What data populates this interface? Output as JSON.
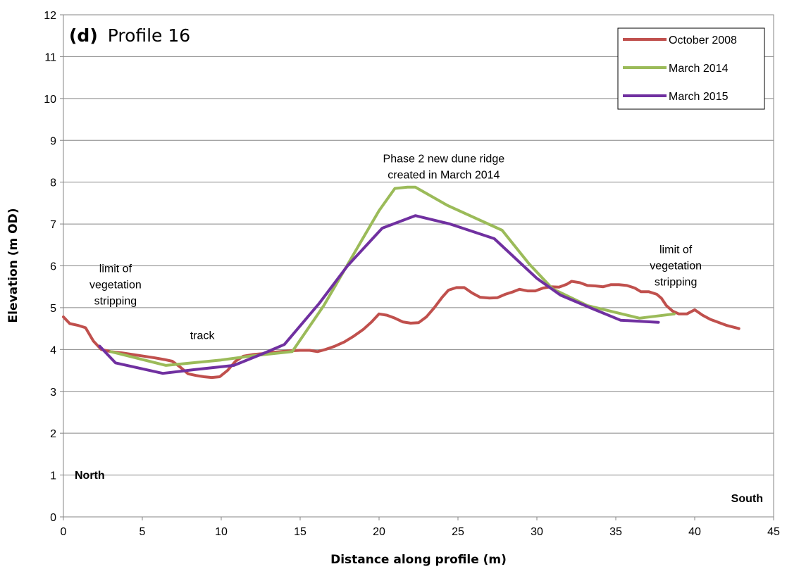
{
  "chart_data": {
    "type": "line",
    "title_letter": "(d)",
    "title": "Profile 16",
    "xlabel": "Distance along profile (m)",
    "ylabel": "Elevation (m OD)",
    "xlim": [
      0,
      45
    ],
    "ylim": [
      0,
      12
    ],
    "xticks": [
      "0",
      "5",
      "10",
      "15",
      "20",
      "25",
      "30",
      "35",
      "40",
      "45"
    ],
    "yticks": [
      "0",
      "1",
      "2",
      "3",
      "4",
      "5",
      "6",
      "7",
      "8",
      "9",
      "10",
      "11",
      "12"
    ],
    "grid": "horizontal",
    "legend_position": "top-right",
    "series": [
      {
        "name": "October 2008",
        "color": "#c0504d",
        "points": [
          [
            0,
            4.78
          ],
          [
            0.4,
            4.62
          ],
          [
            0.9,
            4.58
          ],
          [
            1.4,
            4.52
          ],
          [
            1.9,
            4.2
          ],
          [
            2.4,
            4.0
          ],
          [
            3,
            3.95
          ],
          [
            3.7,
            3.92
          ],
          [
            4.4,
            3.88
          ],
          [
            5.1,
            3.84
          ],
          [
            5.8,
            3.8
          ],
          [
            6.4,
            3.76
          ],
          [
            6.9,
            3.72
          ],
          [
            7.4,
            3.58
          ],
          [
            7.9,
            3.42
          ],
          [
            8.4,
            3.38
          ],
          [
            8.9,
            3.35
          ],
          [
            9.4,
            3.33
          ],
          [
            9.9,
            3.35
          ],
          [
            10.4,
            3.5
          ],
          [
            10.9,
            3.72
          ],
          [
            11.4,
            3.84
          ],
          [
            12,
            3.88
          ],
          [
            12.6,
            3.9
          ],
          [
            13.2,
            3.93
          ],
          [
            13.8,
            3.95
          ],
          [
            14.4,
            3.97
          ],
          [
            15,
            3.98
          ],
          [
            15.6,
            3.98
          ],
          [
            16.1,
            3.95
          ],
          [
            16.6,
            4.0
          ],
          [
            17.2,
            4.08
          ],
          [
            17.8,
            4.18
          ],
          [
            18.4,
            4.32
          ],
          [
            19,
            4.48
          ],
          [
            19.5,
            4.65
          ],
          [
            20,
            4.85
          ],
          [
            20.5,
            4.82
          ],
          [
            21,
            4.75
          ],
          [
            21.5,
            4.66
          ],
          [
            22,
            4.63
          ],
          [
            22.5,
            4.64
          ],
          [
            23,
            4.78
          ],
          [
            23.5,
            5.0
          ],
          [
            24,
            5.25
          ],
          [
            24.4,
            5.42
          ],
          [
            24.9,
            5.48
          ],
          [
            25.4,
            5.48
          ],
          [
            25.9,
            5.35
          ],
          [
            26.4,
            5.25
          ],
          [
            27,
            5.23
          ],
          [
            27.5,
            5.24
          ],
          [
            28,
            5.32
          ],
          [
            28.5,
            5.38
          ],
          [
            28.9,
            5.44
          ],
          [
            29.4,
            5.4
          ],
          [
            29.9,
            5.4
          ],
          [
            30.4,
            5.47
          ],
          [
            30.9,
            5.5
          ],
          [
            31.4,
            5.49
          ],
          [
            31.9,
            5.56
          ],
          [
            32.2,
            5.63
          ],
          [
            32.7,
            5.6
          ],
          [
            33.2,
            5.53
          ],
          [
            33.7,
            5.52
          ],
          [
            34.2,
            5.5
          ],
          [
            34.7,
            5.55
          ],
          [
            35.2,
            5.55
          ],
          [
            35.7,
            5.53
          ],
          [
            36.2,
            5.47
          ],
          [
            36.6,
            5.38
          ],
          [
            37.1,
            5.38
          ],
          [
            37.6,
            5.32
          ],
          [
            37.9,
            5.22
          ],
          [
            38.2,
            5.05
          ],
          [
            38.6,
            4.92
          ],
          [
            39,
            4.85
          ],
          [
            39.5,
            4.85
          ],
          [
            40,
            4.95
          ],
          [
            40.5,
            4.82
          ],
          [
            41,
            4.72
          ],
          [
            41.5,
            4.65
          ],
          [
            42,
            4.58
          ],
          [
            42.5,
            4.53
          ],
          [
            42.8,
            4.5
          ]
        ]
      },
      {
        "name": "March 2014",
        "color": "#9bbb59",
        "points": [
          [
            3,
            3.95
          ],
          [
            6.5,
            3.62
          ],
          [
            10,
            3.75
          ],
          [
            12,
            3.85
          ],
          [
            14.5,
            3.95
          ],
          [
            16.5,
            5.05
          ],
          [
            18.5,
            6.35
          ],
          [
            20,
            7.32
          ],
          [
            21,
            7.85
          ],
          [
            21.8,
            7.88
          ],
          [
            22.3,
            7.88
          ],
          [
            24.3,
            7.45
          ],
          [
            27.8,
            6.85
          ],
          [
            29.5,
            6.05
          ],
          [
            31,
            5.45
          ],
          [
            33.2,
            5.05
          ],
          [
            36.5,
            4.75
          ],
          [
            38.7,
            4.85
          ]
        ]
      },
      {
        "name": "March 2015",
        "color": "#7030a0",
        "points": [
          [
            2.3,
            4.08
          ],
          [
            3.3,
            3.68
          ],
          [
            6.3,
            3.43
          ],
          [
            8.3,
            3.52
          ],
          [
            10.8,
            3.62
          ],
          [
            12.5,
            3.88
          ],
          [
            14,
            4.12
          ],
          [
            16.2,
            5.1
          ],
          [
            18,
            6.0
          ],
          [
            20.2,
            6.9
          ],
          [
            22.3,
            7.2
          ],
          [
            24.5,
            7.0
          ],
          [
            27.3,
            6.65
          ],
          [
            30,
            5.7
          ],
          [
            31.5,
            5.3
          ],
          [
            33.5,
            4.98
          ],
          [
            35.3,
            4.7
          ],
          [
            37.7,
            4.65
          ]
        ]
      }
    ],
    "annotations": [
      {
        "lines": [
          "Phase 2 new dune ridge",
          "created in March 2014"
        ],
        "x": 24.1,
        "y": 8.47
      },
      {
        "lines": [
          "limit of",
          "vegetation",
          "stripping"
        ],
        "x": 3.3,
        "y": 5.85
      },
      {
        "lines": [
          "limit of",
          "vegetation",
          "stripping"
        ],
        "x": 38.8,
        "y": 6.3
      },
      {
        "lines": [
          "track"
        ],
        "x": 8.8,
        "y": 4.25
      }
    ],
    "corner_labels": {
      "left": "North",
      "right": "South"
    }
  }
}
